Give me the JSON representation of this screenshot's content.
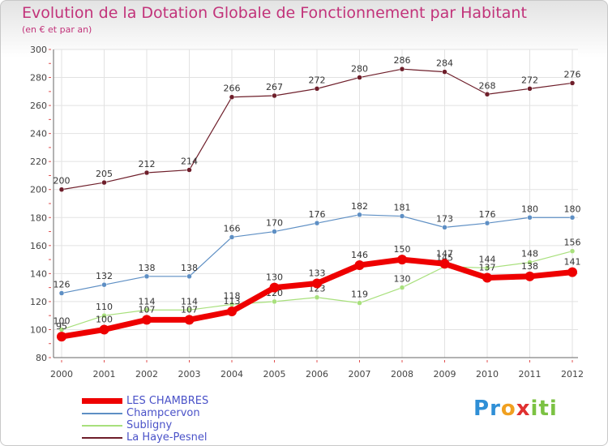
{
  "page": {
    "title": "Evolution de la Dotation Globale de Fonctionnement par Habitant",
    "subtitle": "(en € et par an)",
    "brand": {
      "letters": [
        "P",
        "r",
        "o",
        "x",
        "i",
        "t",
        "i"
      ],
      "colors": [
        "#2f8fd6",
        "#2f8fd6",
        "#f0a020",
        "#e03030",
        "#7cc243",
        "#7cc243",
        "#7cc243"
      ]
    }
  },
  "chart_data": {
    "type": "line",
    "categories": [
      "2000",
      "2001",
      "2002",
      "2003",
      "2004",
      "2005",
      "2006",
      "2007",
      "2008",
      "2009",
      "2010",
      "2011",
      "2012"
    ],
    "ylim": [
      80,
      300
    ],
    "yticks": [
      80,
      100,
      120,
      140,
      160,
      180,
      200,
      220,
      240,
      260,
      280,
      300
    ],
    "grid": true,
    "legend_position": "bottom-left",
    "series": [
      {
        "name": "La Haye-Pesnel",
        "color": "#6e1e2a",
        "width": 1.2,
        "values": [
          200,
          205,
          212,
          214,
          266,
          267,
          272,
          280,
          286,
          284,
          268,
          272,
          276
        ]
      },
      {
        "name": "Champcervon",
        "color": "#5e8fc4",
        "width": 1.2,
        "values": [
          126,
          132,
          138,
          138,
          166,
          170,
          176,
          182,
          181,
          173,
          176,
          180,
          180
        ]
      },
      {
        "name": "Subligny",
        "color": "#a8e07c",
        "width": 1.2,
        "values": [
          100,
          110,
          114,
          114,
          118,
          120,
          123,
          119,
          130,
          145,
          144,
          148,
          156
        ]
      },
      {
        "name": "LES CHAMBRES",
        "color": "#ee0000",
        "width": 7,
        "values": [
          95,
          100,
          107,
          107,
          113,
          130,
          133,
          146,
          150,
          147,
          137,
          138,
          141
        ]
      }
    ],
    "data_labels": [
      [
        "200",
        "205",
        "212",
        "214",
        "266",
        "267",
        "272",
        "280",
        "286",
        "284",
        "268",
        "272",
        "276"
      ],
      [
        "126",
        "132",
        "138",
        "138",
        "166",
        "170",
        "176",
        "182",
        "181",
        "173",
        "176",
        "180",
        "180"
      ],
      [
        "100",
        "110",
        "114",
        "114",
        "118",
        "120",
        "123",
        "119",
        "130",
        "145",
        "144",
        "148",
        "156"
      ],
      [
        "95",
        "100",
        "107",
        "107",
        "113",
        "130",
        "133",
        "146",
        "150",
        "147",
        "137",
        "138",
        "141"
      ]
    ],
    "legend_order": [
      "LES CHAMBRES",
      "Champcervon",
      "Subligny",
      "La Haye-Pesnel"
    ]
  }
}
